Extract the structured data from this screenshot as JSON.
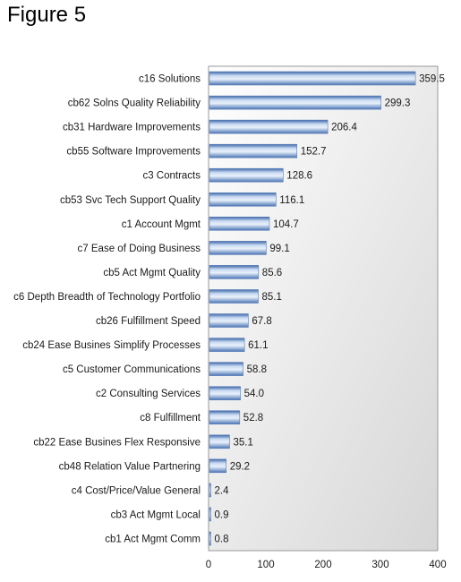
{
  "figure": {
    "title": "Figure 5"
  },
  "chart_data": {
    "type": "bar",
    "orientation": "horizontal",
    "title": "",
    "xlabel": "",
    "ylabel": "",
    "xlim": [
      0,
      400
    ],
    "x_ticks": [
      0,
      100,
      200,
      300,
      400
    ],
    "grid": false,
    "legend": "none",
    "bar_color": "#7fa3d3",
    "categories": [
      "c16 Solutions",
      "cb62 Solns Quality Reliability",
      "cb31 Hardware Improvements",
      "cb55 Software Improvements",
      "c3 Contracts",
      "cb53 Svc Tech Support Quality",
      "c1 Account Mgmt",
      "c7 Ease of Doing Business",
      "cb5 Act Mgmt Quality",
      "c6 Depth Breadth of Technology Portfolio",
      "cb26 Fulfillment Speed",
      "cb24 Ease Busines Simplify Processes",
      "c5 Customer Communications",
      "c2 Consulting Services",
      "c8 Fulfillment",
      "cb22 Ease Busines Flex Responsive",
      "cb48 Relation Value Partnering",
      "c4 Cost/Price/Value General",
      "cb3 Act Mgmt Local",
      "cb1 Act Mgmt Comm"
    ],
    "values": [
      359.5,
      299.3,
      206.4,
      152.7,
      128.6,
      116.1,
      104.7,
      99.1,
      85.6,
      85.1,
      67.8,
      61.1,
      58.8,
      54.0,
      52.8,
      35.1,
      29.2,
      2.4,
      0.9,
      0.8
    ],
    "value_labels": [
      "359.5",
      "299.3",
      "206.4",
      "152.7",
      "128.6",
      "116.1",
      "104.7",
      "99.1",
      "85.6",
      "85.1",
      "67.8",
      "61.1",
      "58.8",
      "54.0",
      "52.8",
      "35.1",
      "29.2",
      "2.4",
      "0.9",
      "0.8"
    ]
  }
}
